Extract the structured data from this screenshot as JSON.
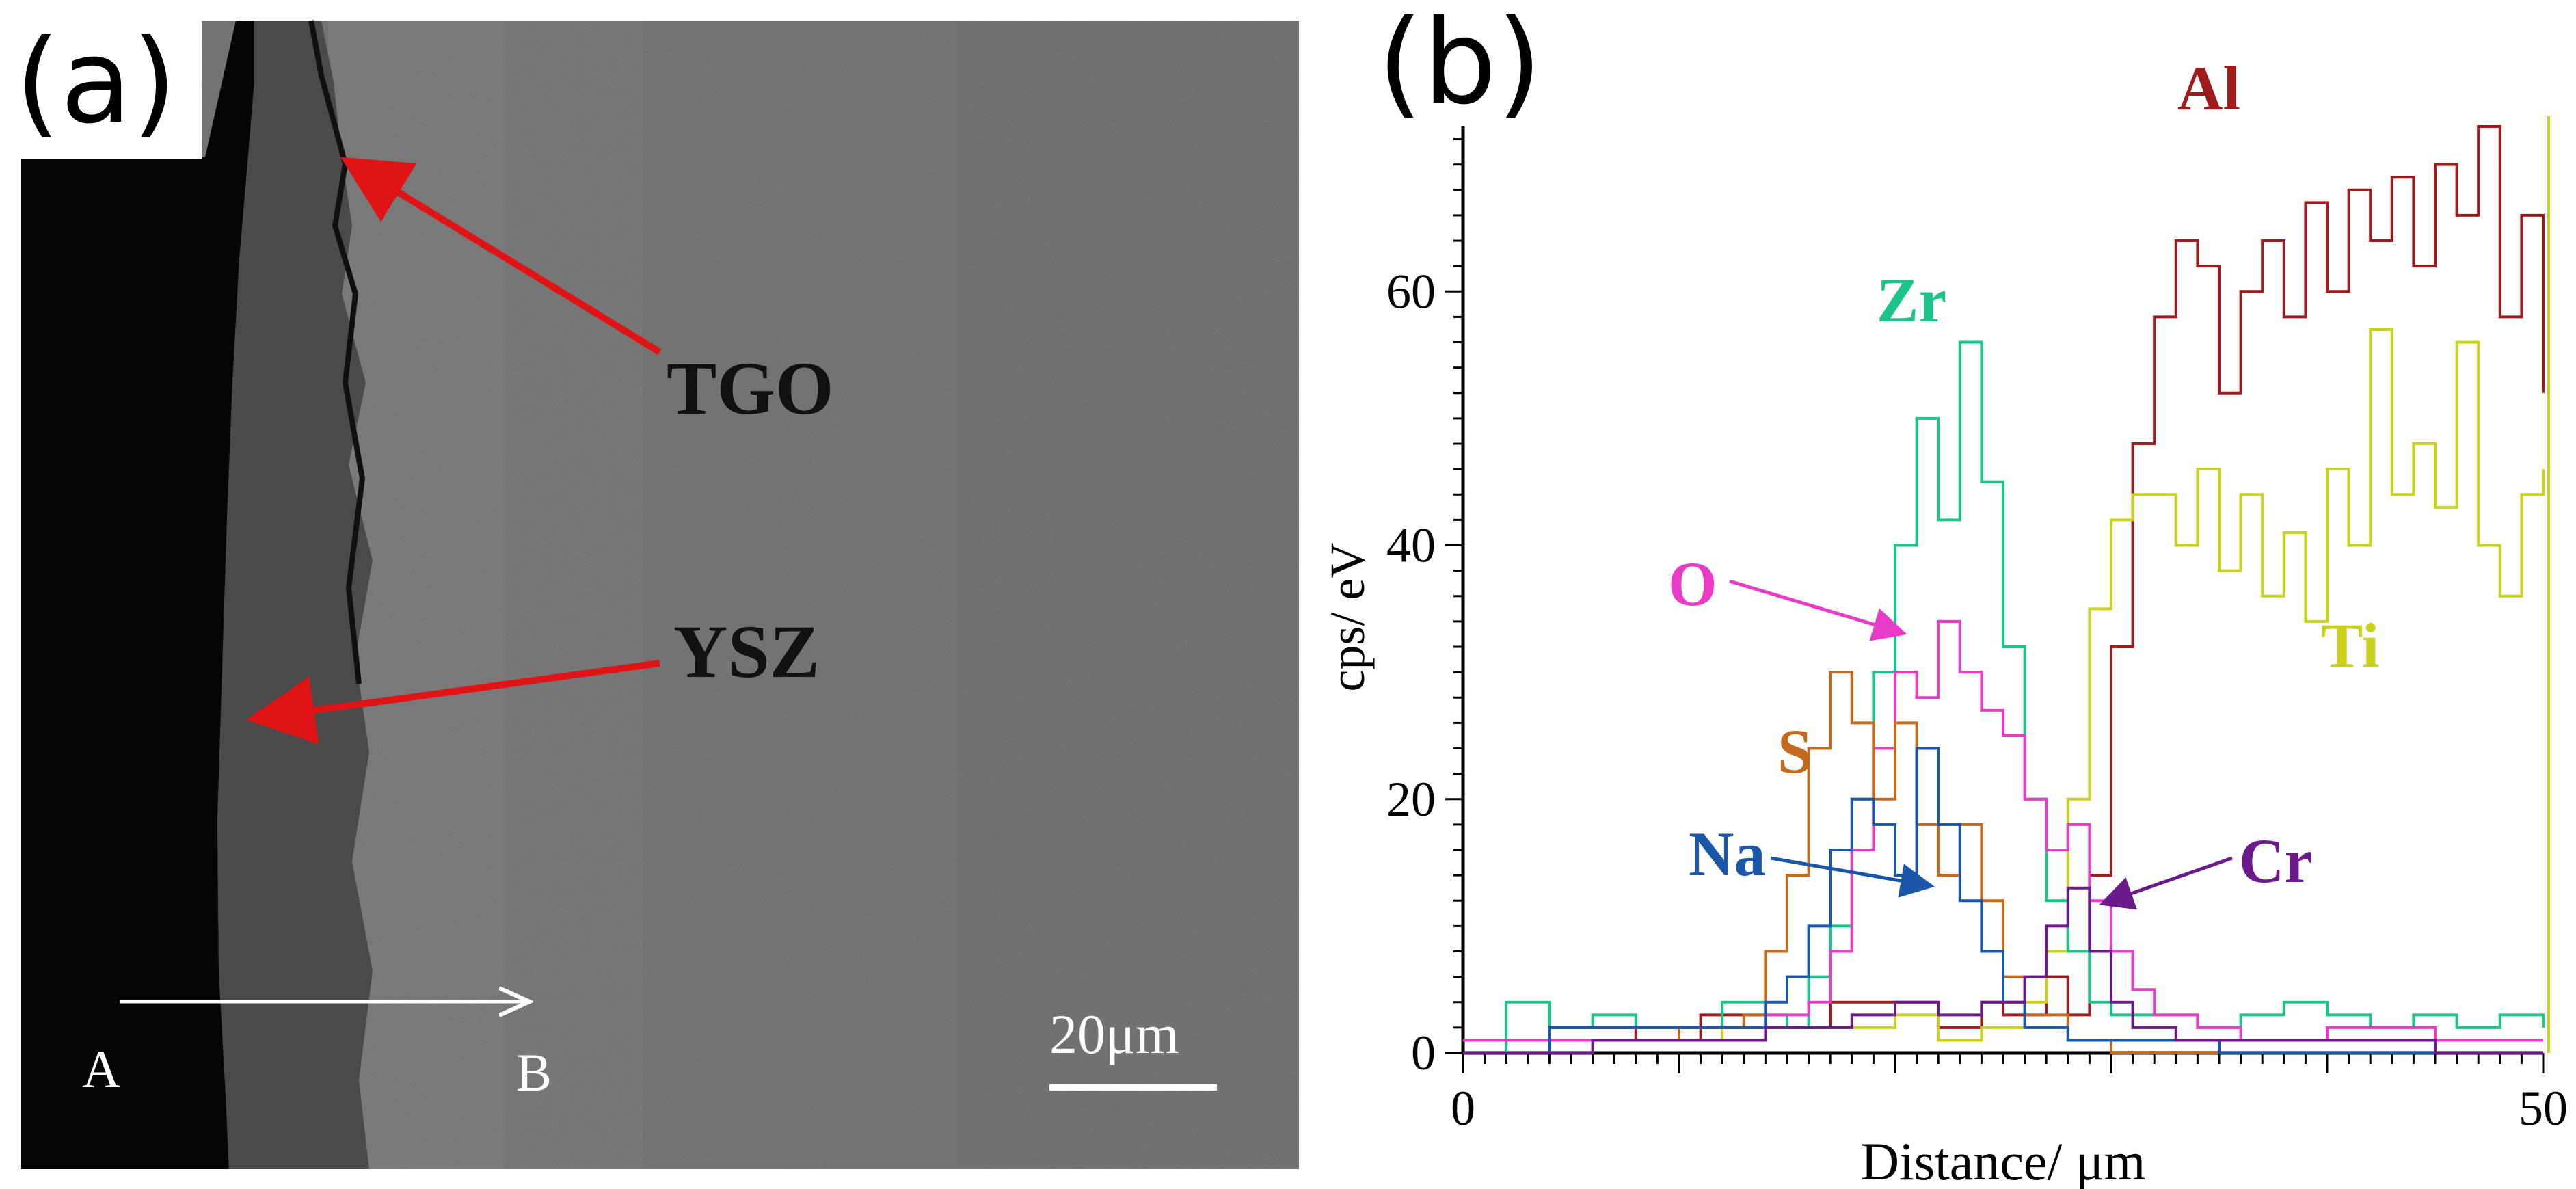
{
  "figure": {
    "panel_a": {
      "label": "(a)",
      "annotations": [
        "TGO",
        "YSZ"
      ],
      "line_start_label": "A",
      "line_end_label": "B",
      "scale_bar_label": "20μm"
    },
    "panel_b": {
      "label": "(b)"
    }
  },
  "chart_data": {
    "type": "line",
    "title": "",
    "xlabel": "Distance/ μm",
    "ylabel": "cps/ eV",
    "xlim": [
      0,
      50
    ],
    "ylim": [
      0,
      73
    ],
    "x_ticks": [
      0,
      50
    ],
    "y_ticks": [
      0,
      20,
      40,
      60
    ],
    "grid": false,
    "legend": "inline labels",
    "series": [
      {
        "name": "Al",
        "color": "#a01c1c",
        "points": [
          [
            0,
            1
          ],
          [
            4,
            2
          ],
          [
            8,
            1
          ],
          [
            11,
            3
          ],
          [
            14,
            2
          ],
          [
            17,
            4
          ],
          [
            20,
            4
          ],
          [
            22,
            2
          ],
          [
            24,
            4
          ],
          [
            25,
            3
          ],
          [
            27,
            6
          ],
          [
            28,
            3
          ],
          [
            29,
            14
          ],
          [
            30,
            32
          ],
          [
            31,
            48
          ],
          [
            32,
            58
          ],
          [
            33,
            64
          ],
          [
            34,
            62
          ],
          [
            35,
            52
          ],
          [
            36,
            60
          ],
          [
            37,
            64
          ],
          [
            38,
            58
          ],
          [
            39,
            67
          ],
          [
            40,
            60
          ],
          [
            41,
            68
          ],
          [
            42,
            64
          ],
          [
            43,
            69
          ],
          [
            44,
            62
          ],
          [
            45,
            70
          ],
          [
            46,
            66
          ],
          [
            47,
            73
          ],
          [
            48,
            58
          ],
          [
            49,
            66
          ],
          [
            50,
            52
          ]
        ]
      },
      {
        "name": "Ti",
        "color": "#c8d21c",
        "points": [
          [
            0,
            0
          ],
          [
            4,
            1
          ],
          [
            8,
            1
          ],
          [
            12,
            2
          ],
          [
            14,
            2
          ],
          [
            18,
            2
          ],
          [
            20,
            3
          ],
          [
            22,
            1
          ],
          [
            24,
            2
          ],
          [
            26,
            4
          ],
          [
            27,
            8
          ],
          [
            28,
            20
          ],
          [
            29,
            35
          ],
          [
            30,
            42
          ],
          [
            31,
            44
          ],
          [
            32,
            44
          ],
          [
            33,
            40
          ],
          [
            34,
            46
          ],
          [
            35,
            38
          ],
          [
            36,
            44
          ],
          [
            37,
            36
          ],
          [
            38,
            41
          ],
          [
            39,
            34
          ],
          [
            40,
            46
          ],
          [
            41,
            40
          ],
          [
            42,
            57
          ],
          [
            43,
            44
          ],
          [
            44,
            48
          ],
          [
            45,
            43
          ],
          [
            46,
            56
          ],
          [
            47,
            40
          ],
          [
            48,
            36
          ],
          [
            49,
            44
          ],
          [
            50,
            46
          ]
        ]
      },
      {
        "name": "Zr",
        "color": "#1cc48a",
        "points": [
          [
            0,
            0
          ],
          [
            2,
            4
          ],
          [
            4,
            2
          ],
          [
            6,
            3
          ],
          [
            8,
            2
          ],
          [
            10,
            2
          ],
          [
            12,
            4
          ],
          [
            14,
            3
          ],
          [
            15,
            2
          ],
          [
            16,
            6
          ],
          [
            17,
            10
          ],
          [
            18,
            20
          ],
          [
            19,
            30
          ],
          [
            20,
            40
          ],
          [
            21,
            50
          ],
          [
            22,
            42
          ],
          [
            23,
            56
          ],
          [
            24,
            45
          ],
          [
            25,
            32
          ],
          [
            26,
            20
          ],
          [
            27,
            12
          ],
          [
            28,
            8
          ],
          [
            29,
            4
          ],
          [
            30,
            3
          ],
          [
            32,
            3
          ],
          [
            34,
            2
          ],
          [
            36,
            3
          ],
          [
            38,
            4
          ],
          [
            40,
            3
          ],
          [
            42,
            2
          ],
          [
            44,
            3
          ],
          [
            46,
            2
          ],
          [
            48,
            3
          ],
          [
            50,
            2
          ]
        ]
      },
      {
        "name": "O",
        "color": "#e83cc6",
        "points": [
          [
            0,
            1
          ],
          [
            5,
            1
          ],
          [
            10,
            2
          ],
          [
            14,
            3
          ],
          [
            16,
            4
          ],
          [
            17,
            8
          ],
          [
            18,
            16
          ],
          [
            19,
            24
          ],
          [
            20,
            30
          ],
          [
            21,
            28
          ],
          [
            22,
            34
          ],
          [
            23,
            30
          ],
          [
            24,
            27
          ],
          [
            25,
            25
          ],
          [
            26,
            20
          ],
          [
            27,
            16
          ],
          [
            28,
            18
          ],
          [
            29,
            12
          ],
          [
            30,
            8
          ],
          [
            31,
            5
          ],
          [
            32,
            3
          ],
          [
            34,
            2
          ],
          [
            36,
            1
          ],
          [
            40,
            2
          ],
          [
            45,
            1
          ],
          [
            50,
            1
          ]
        ]
      },
      {
        "name": "S",
        "color": "#c46a1e",
        "points": [
          [
            0,
            0
          ],
          [
            6,
            1
          ],
          [
            10,
            2
          ],
          [
            13,
            3
          ],
          [
            14,
            8
          ],
          [
            15,
            14
          ],
          [
            16,
            24
          ],
          [
            17,
            30
          ],
          [
            18,
            26
          ],
          [
            19,
            20
          ],
          [
            20,
            26
          ],
          [
            21,
            18
          ],
          [
            22,
            14
          ],
          [
            23,
            18
          ],
          [
            24,
            12
          ],
          [
            25,
            6
          ],
          [
            26,
            3
          ],
          [
            28,
            1
          ],
          [
            30,
            0
          ],
          [
            35,
            0
          ],
          [
            40,
            0
          ],
          [
            45,
            0
          ],
          [
            50,
            0
          ]
        ]
      },
      {
        "name": "Na",
        "color": "#1a57a8",
        "points": [
          [
            0,
            0
          ],
          [
            4,
            2
          ],
          [
            8,
            2
          ],
          [
            10,
            2
          ],
          [
            12,
            2
          ],
          [
            14,
            4
          ],
          [
            15,
            6
          ],
          [
            16,
            10
          ],
          [
            17,
            16
          ],
          [
            18,
            20
          ],
          [
            19,
            18
          ],
          [
            20,
            14
          ],
          [
            21,
            24
          ],
          [
            22,
            18
          ],
          [
            23,
            12
          ],
          [
            24,
            8
          ],
          [
            25,
            4
          ],
          [
            26,
            2
          ],
          [
            28,
            1
          ],
          [
            30,
            1
          ],
          [
            35,
            0
          ],
          [
            40,
            0
          ],
          [
            45,
            0
          ],
          [
            50,
            0
          ]
        ]
      },
      {
        "name": "Cr",
        "color": "#6a1a8a",
        "points": [
          [
            0,
            0
          ],
          [
            6,
            1
          ],
          [
            10,
            1
          ],
          [
            14,
            2
          ],
          [
            16,
            2
          ],
          [
            18,
            3
          ],
          [
            20,
            4
          ],
          [
            22,
            3
          ],
          [
            24,
            4
          ],
          [
            26,
            6
          ],
          [
            27,
            10
          ],
          [
            28,
            13
          ],
          [
            29,
            8
          ],
          [
            30,
            4
          ],
          [
            31,
            2
          ],
          [
            33,
            1
          ],
          [
            36,
            1
          ],
          [
            40,
            1
          ],
          [
            45,
            0
          ],
          [
            50,
            0
          ]
        ]
      }
    ],
    "annotations": [
      {
        "text": "Al"
      },
      {
        "text": "Zr"
      },
      {
        "text": "O"
      },
      {
        "text": "S"
      },
      {
        "text": "Na"
      },
      {
        "text": "Cr"
      },
      {
        "text": "Ti"
      }
    ]
  },
  "colors": {
    "arrow_red": "#e01414",
    "sem_background": "#6e6e6e"
  }
}
